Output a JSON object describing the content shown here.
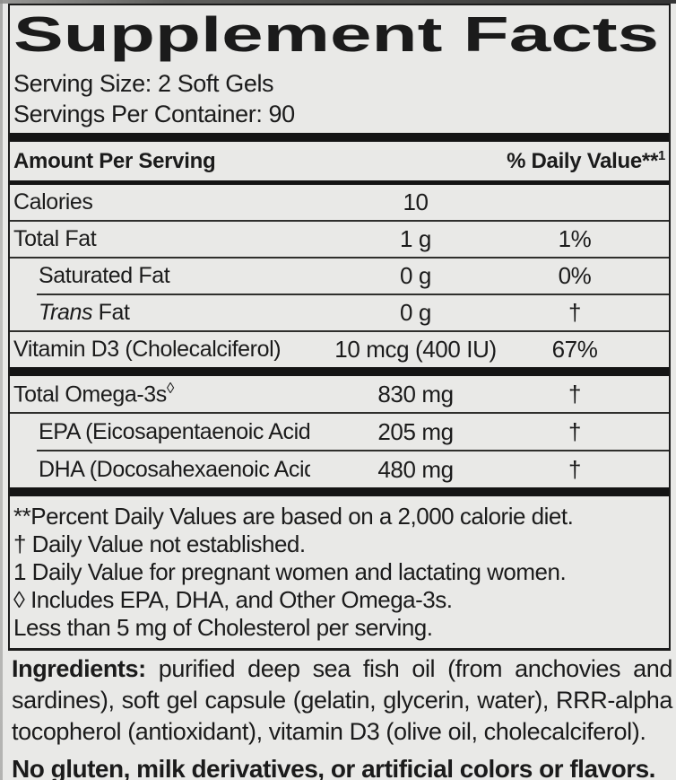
{
  "colors": {
    "background": "#e9e9e7",
    "text": "#1b1b1b",
    "bar": "#141414"
  },
  "supplement_facts": {
    "title": "Supplement Facts",
    "serving_size": "Serving Size: 2 Soft Gels",
    "servings_per_container": "Servings Per Container: 90",
    "column_headers": {
      "amount_per_serving": "Amount Per Serving",
      "daily_value": "% Daily Value**",
      "daily_value_footnote_ref": "1"
    },
    "rows": [
      {
        "name": "Calories",
        "name_italic_prefix": "",
        "name_superscript": "",
        "amount": "10",
        "daily_value": ""
      },
      {
        "name": "Total Fat",
        "name_italic_prefix": "",
        "name_superscript": "",
        "amount": "1 g",
        "daily_value": "1%"
      },
      {
        "name": "Saturated Fat",
        "name_italic_prefix": "",
        "name_superscript": "",
        "amount": "0 g",
        "daily_value": "0%"
      },
      {
        "name": " Fat",
        "name_italic_prefix": "Trans",
        "name_superscript": "",
        "amount": "0 g",
        "daily_value": "†"
      },
      {
        "name": "Vitamin D3 (Cholecalciferol)",
        "name_italic_prefix": "",
        "name_superscript": "",
        "amount": "10 mcg (400 IU)",
        "daily_value": "67%"
      },
      {
        "name": "Total Omega-3s",
        "name_italic_prefix": "",
        "name_superscript": "◊",
        "amount": "830 mg",
        "daily_value": "†"
      },
      {
        "name": "EPA (Eicosapentaenoic Acid)",
        "name_italic_prefix": "",
        "name_superscript": "",
        "amount": "205 mg",
        "daily_value": "†"
      },
      {
        "name": "DHA (Docosahexaenoic Acid)",
        "name_italic_prefix": "",
        "name_superscript": "",
        "amount": "480 mg",
        "daily_value": "†"
      }
    ],
    "footnotes": [
      "**Percent Daily Values are based on a 2,000 calorie diet.",
      "† Daily Value not established.",
      "1 Daily Value for pregnant women and lactating women.",
      "◊ Includes EPA, DHA, and Other Omega-3s.",
      "Less than 5 mg of Cholesterol per serving."
    ]
  },
  "ingredients": {
    "label": "Ingredients:",
    "text": " purified deep sea fish oil (from anchovies and sardines), soft gel capsule (gelatin, glycerin, water), RRR-alpha tocopherol (antioxidant), vitamin D3 (olive oil, cholecalciferol)."
  },
  "allergen_statement": "No gluten, milk derivatives, or artificial colors or flavors."
}
